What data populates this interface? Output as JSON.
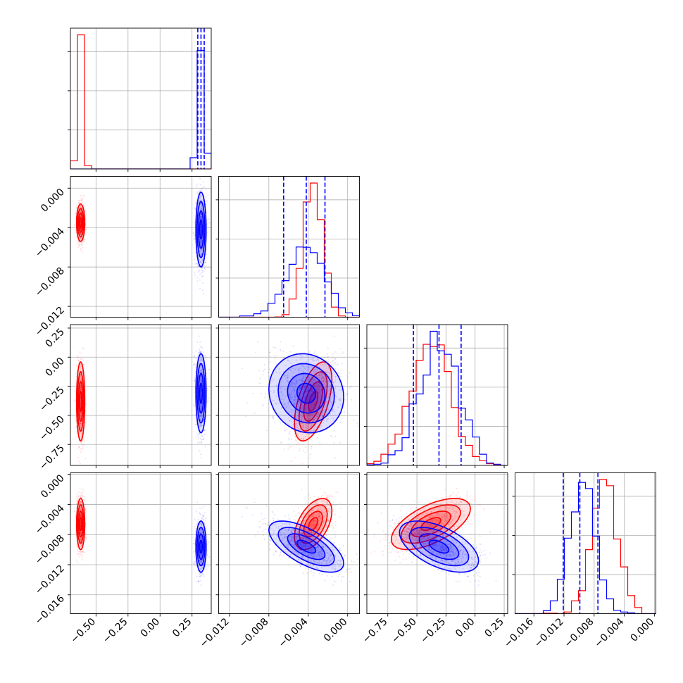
{
  "chart_data": {
    "type": "corner",
    "colors": {
      "series_a": "#ff0000",
      "series_b": "#0000ff"
    },
    "grid": true,
    "quantile_lines": "dashed, blue (series_b): 16th, 50th, 84th percentiles",
    "parameters": [
      {
        "range": [
          -0.7,
          0.4
        ],
        "ticks": [
          -0.5,
          -0.25,
          0.0,
          0.25
        ],
        "tick_labels": [
          "−0.50",
          "−0.25",
          "0.00",
          "0.25"
        ]
      },
      {
        "range": [
          -0.0131,
          0.0012
        ],
        "ticks": [
          -0.012,
          -0.008,
          -0.004,
          0.0
        ],
        "tick_labels": [
          "−0.012",
          "−0.008",
          "−0.004",
          "0.000"
        ]
      },
      {
        "range": [
          -0.93,
          0.28
        ],
        "ticks": [
          -0.75,
          -0.5,
          -0.25,
          0.0,
          0.25
        ],
        "tick_labels": [
          "−0.75",
          "−0.50",
          "−0.25",
          "0.00",
          "0.25"
        ]
      },
      {
        "range": [
          -0.0185,
          0.0002
        ],
        "ticks": [
          -0.016,
          -0.012,
          -0.008,
          -0.004,
          0.0
        ],
        "tick_labels": [
          "−0.016",
          "−0.012",
          "−0.008",
          "−0.004",
          "0.000"
        ]
      }
    ],
    "series": [
      {
        "color": "#ff0000",
        "mean": [
          -0.62,
          -0.0035,
          -0.38,
          -0.0066
        ],
        "std": [
          0.016,
          0.00095,
          0.17,
          0.0017
        ],
        "corr": [
          [
            1,
            0,
            0,
            0
          ],
          [
            0,
            1,
            0.55,
            0.5
          ],
          [
            0,
            0.55,
            1,
            0.6
          ],
          [
            0,
            0.5,
            0.6,
            1
          ]
        ]
      },
      {
        "color": "#0000ff",
        "mean": [
          0.32,
          -0.0042,
          -0.31,
          -0.0096
        ],
        "std": [
          0.02,
          0.0019,
          0.17,
          0.0017
        ],
        "corr": [
          [
            1,
            0,
            0,
            0
          ],
          [
            0,
            1,
            -0.1,
            -0.65
          ],
          [
            0,
            -0.1,
            1,
            -0.55
          ],
          [
            0,
            -0.65,
            -0.55,
            1
          ]
        ]
      }
    ],
    "quantiles": [
      [
        0.295,
        0.32,
        0.345
      ],
      [
        -0.0065,
        -0.0042,
        -0.0023
      ],
      [
        -0.53,
        -0.31,
        -0.12
      ],
      [
        -0.0121,
        -0.0099,
        -0.0075
      ]
    ]
  }
}
